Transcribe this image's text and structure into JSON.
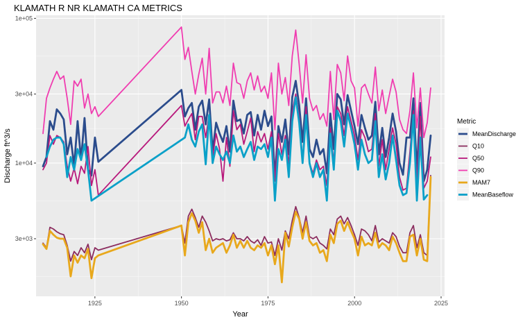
{
  "chart_data": {
    "type": "line",
    "title": "KLAMATH R NR KLAMATH CA  METRICS",
    "xlabel": "Year",
    "ylabel": "Discharge ft^3/s",
    "xlim": [
      1908,
      2026
    ],
    "ylim": [
      1200,
      105000
    ],
    "y_scale": "log",
    "x_ticks": [
      1925,
      1950,
      1975,
      2000,
      2025
    ],
    "x_tick_labels": [
      "1925",
      "1950",
      "1975",
      "2000",
      "2025"
    ],
    "y_ticks": [
      3000,
      10000,
      30000,
      100000
    ],
    "y_tick_labels": [
      "3e+03",
      "1e+04",
      "3e+04",
      "1e+05"
    ],
    "grid": true,
    "legend": {
      "title": "Metric",
      "position": "right"
    },
    "series": [
      {
        "name": "MeanDischarge",
        "color": "#2b4c8c",
        "width": 2.8,
        "x": [
          1910,
          1911,
          1912,
          1913,
          1914,
          1915,
          1916,
          1917,
          1918,
          1919,
          1920,
          1921,
          1922,
          1923,
          1924,
          1925,
          1926,
          1950,
          1951,
          1952,
          1953,
          1954,
          1955,
          1956,
          1957,
          1958,
          1959,
          1960,
          1961,
          1962,
          1963,
          1964,
          1965,
          1966,
          1967,
          1968,
          1969,
          1970,
          1971,
          1972,
          1973,
          1974,
          1975,
          1976,
          1977,
          1978,
          1979,
          1980,
          1981,
          1982,
          1983,
          1984,
          1985,
          1986,
          1987,
          1988,
          1989,
          1990,
          1991,
          1992,
          1993,
          1994,
          1995,
          1996,
          1997,
          1998,
          1999,
          2000,
          2001,
          2002,
          2003,
          2004,
          2005,
          2006,
          2007,
          2008,
          2009,
          2010,
          2011,
          2012,
          2013,
          2014,
          2015,
          2016,
          2017,
          2018,
          2019,
          2020,
          2021,
          2022
        ],
        "y": [
          9500,
          11000,
          19500,
          17000,
          23500,
          22000,
          20000,
          11500,
          15000,
          9500,
          19500,
          10500,
          20500,
          9000,
          8200,
          15000,
          10200,
          32000,
          21000,
          24000,
          26000,
          17000,
          24500,
          27000,
          18500,
          27500,
          12000,
          19000,
          16000,
          14000,
          18000,
          12000,
          27000,
          19500,
          20000,
          16000,
          21500,
          22500,
          15500,
          21500,
          17000,
          23000,
          18000,
          21000,
          8000,
          18000,
          14000,
          20000,
          11500,
          28500,
          37000,
          25000,
          14000,
          28000,
          12500,
          11000,
          14500,
          11500,
          12500,
          8500,
          22000,
          12500,
          30000,
          27500,
          18500,
          29500,
          23000,
          18000,
          13500,
          21500,
          17500,
          14500,
          15500,
          26500,
          11500,
          17500,
          11000,
          15000,
          22000,
          16500,
          10000,
          8300,
          15000,
          15000,
          28000,
          8700,
          26000,
          7500,
          9000,
          15500
        ]
      },
      {
        "name": "Q10",
        "color": "#8b2c5e",
        "width": 1.8,
        "x": [
          1910,
          1911,
          1912,
          1913,
          1914,
          1915,
          1916,
          1917,
          1918,
          1919,
          1920,
          1921,
          1922,
          1923,
          1924,
          1925,
          1926,
          1950,
          1951,
          1952,
          1953,
          1954,
          1955,
          1956,
          1957,
          1958,
          1959,
          1960,
          1961,
          1962,
          1963,
          1964,
          1965,
          1966,
          1967,
          1968,
          1969,
          1970,
          1971,
          1972,
          1973,
          1974,
          1975,
          1976,
          1977,
          1978,
          1979,
          1980,
          1981,
          1982,
          1983,
          1984,
          1985,
          1986,
          1987,
          1988,
          1989,
          1990,
          1991,
          1992,
          1993,
          1994,
          1995,
          1996,
          1997,
          1998,
          1999,
          2000,
          2001,
          2002,
          2003,
          2004,
          2005,
          2006,
          2007,
          2008,
          2009,
          2010,
          2011,
          2012,
          2013,
          2014,
          2015,
          2016,
          2017,
          2018,
          2019,
          2020,
          2021,
          2022
        ],
        "y": [
          2800,
          2600,
          3600,
          3500,
          3350,
          3250,
          3200,
          2700,
          2100,
          2450,
          2300,
          2600,
          2400,
          2750,
          2150,
          2600,
          2500,
          3700,
          2800,
          4300,
          4800,
          4200,
          3600,
          4300,
          3900,
          3400,
          2900,
          3000,
          2950,
          3000,
          2900,
          2950,
          3300,
          3000,
          3000,
          2900,
          3100,
          2900,
          2800,
          2950,
          2700,
          3100,
          2800,
          2850,
          2300,
          3000,
          2500,
          3400,
          3000,
          4000,
          5000,
          4200,
          3300,
          4300,
          3100,
          3000,
          3100,
          2800,
          2700,
          2550,
          3500,
          3200,
          4100,
          4300,
          3800,
          4200,
          3700,
          3200,
          2700,
          3500,
          3400,
          3200,
          2900,
          3700,
          2850,
          3000,
          2900,
          2800,
          3300,
          3100,
          2650,
          2400,
          2400,
          3300,
          3700,
          2600,
          3200,
          2400,
          2300,
          8200
        ]
      },
      {
        "name": "Q50",
        "color": "#b8197c",
        "width": 1.8,
        "x": [
          1910,
          1911,
          1912,
          1913,
          1914,
          1915,
          1916,
          1917,
          1918,
          1919,
          1920,
          1921,
          1922,
          1923,
          1924,
          1925,
          1926,
          1950,
          1951,
          1952,
          1953,
          1954,
          1955,
          1956,
          1957,
          1958,
          1959,
          1960,
          1961,
          1962,
          1963,
          1964,
          1965,
          1966,
          1967,
          1968,
          1969,
          1970,
          1971,
          1972,
          1973,
          1974,
          1975,
          1976,
          1977,
          1978,
          1979,
          1980,
          1981,
          1982,
          1983,
          1984,
          1985,
          1986,
          1987,
          1988,
          1989,
          1990,
          1991,
          1992,
          1993,
          1994,
          1995,
          1996,
          1997,
          1998,
          1999,
          2000,
          2001,
          2002,
          2003,
          2004,
          2005,
          2006,
          2007,
          2008,
          2009,
          2010,
          2011,
          2012,
          2013,
          2014,
          2015,
          2016,
          2017,
          2018,
          2019,
          2020,
          2021,
          2022
        ],
        "y": [
          9000,
          10000,
          15500,
          13500,
          15500,
          15000,
          14000,
          9500,
          7500,
          9200,
          7200,
          9500,
          8500,
          13000,
          7000,
          9000,
          6000,
          25000,
          18000,
          20000,
          22000,
          14500,
          21000,
          21000,
          15000,
          21500,
          11000,
          16000,
          12500,
          7500,
          15000,
          9500,
          23000,
          17000,
          18500,
          13500,
          16500,
          20500,
          12000,
          16500,
          14000,
          16000,
          12500,
          16500,
          7500,
          16000,
          11500,
          15500,
          9800,
          22500,
          30000,
          21000,
          10500,
          24500,
          10000,
          8500,
          10500,
          9000,
          9500,
          7000,
          17500,
          10000,
          24500,
          22000,
          15500,
          24500,
          19500,
          15500,
          10500,
          17000,
          15000,
          12000,
          12500,
          22000,
          9500,
          14500,
          9000,
          12500,
          17500,
          13500,
          8000,
          6500,
          6700,
          12000,
          23000,
          7200,
          21000,
          6700,
          7500,
          11000
        ]
      },
      {
        "name": "Q90",
        "color": "#f03cb0",
        "width": 1.8,
        "x": [
          1910,
          1911,
          1912,
          1913,
          1914,
          1915,
          1916,
          1917,
          1918,
          1919,
          1920,
          1921,
          1922,
          1923,
          1924,
          1925,
          1926,
          1950,
          1951,
          1952,
          1953,
          1954,
          1955,
          1956,
          1957,
          1958,
          1959,
          1960,
          1961,
          1962,
          1963,
          1964,
          1965,
          1966,
          1967,
          1968,
          1969,
          1970,
          1971,
          1972,
          1973,
          1974,
          1975,
          1976,
          1977,
          1978,
          1979,
          1980,
          1981,
          1982,
          1983,
          1984,
          1985,
          1986,
          1987,
          1988,
          1989,
          1990,
          1991,
          1992,
          1993,
          1994,
          1995,
          1996,
          1997,
          1998,
          1999,
          2000,
          2001,
          2002,
          2003,
          2004,
          2005,
          2006,
          2007,
          2008,
          2009,
          2010,
          2011,
          2012,
          2013,
          2014,
          2015,
          2016,
          2017,
          2018,
          2019,
          2020,
          2021,
          2022
        ],
        "y": [
          16000,
          28000,
          33000,
          38000,
          43000,
          38000,
          40000,
          28000,
          18500,
          37000,
          34000,
          38000,
          24000,
          30000,
          22000,
          24500,
          21000,
          87000,
          52000,
          63000,
          43000,
          30000,
          41000,
          53000,
          30000,
          62000,
          26000,
          31000,
          31000,
          26000,
          34000,
          25000,
          49000,
          36000,
          35000,
          28000,
          37000,
          42000,
          32000,
          40000,
          31000,
          34000,
          28000,
          42000,
          17000,
          49000,
          30000,
          39000,
          25000,
          55000,
          83000,
          48000,
          26000,
          56000,
          28000,
          23000,
          25000,
          20000,
          22000,
          18000,
          43000,
          20000,
          48000,
          42000,
          27000,
          55000,
          37000,
          33000,
          18000,
          33000,
          35000,
          30000,
          26000,
          46000,
          23000,
          32000,
          22000,
          29000,
          38000,
          31000,
          20000,
          17000,
          16000,
          23000,
          42000,
          17500,
          33000,
          15000,
          19000,
          33000
        ]
      },
      {
        "name": "MAM7",
        "color": "#e8a81c",
        "width": 2.8,
        "x": [
          1910,
          1911,
          1912,
          1913,
          1914,
          1915,
          1916,
          1917,
          1918,
          1919,
          1920,
          1921,
          1922,
          1923,
          1924,
          1925,
          1926,
          1950,
          1951,
          1952,
          1953,
          1954,
          1955,
          1956,
          1957,
          1958,
          1959,
          1960,
          1961,
          1962,
          1963,
          1964,
          1965,
          1966,
          1967,
          1968,
          1969,
          1970,
          1971,
          1972,
          1973,
          1974,
          1975,
          1976,
          1977,
          1978,
          1979,
          1980,
          1981,
          1982,
          1983,
          1984,
          1985,
          1986,
          1987,
          1988,
          1989,
          1990,
          1991,
          1992,
          1993,
          1994,
          1995,
          1996,
          1997,
          1998,
          1999,
          2000,
          2001,
          2002,
          2003,
          2004,
          2005,
          2006,
          2007,
          2008,
          2009,
          2010,
          2011,
          2012,
          2013,
          2014,
          2015,
          2016,
          2017,
          2018,
          2019,
          2020,
          2021,
          2022
        ],
        "y": [
          2750,
          2550,
          3400,
          3200,
          3050,
          3000,
          3000,
          2600,
          1650,
          2300,
          2050,
          2300,
          2200,
          2550,
          1600,
          2200,
          2300,
          3700,
          2300,
          3900,
          4500,
          4000,
          3300,
          3900,
          2500,
          3000,
          2400,
          2600,
          2700,
          2800,
          2400,
          2700,
          3200,
          2600,
          2900,
          2600,
          2900,
          2600,
          2500,
          2700,
          2600,
          2800,
          2300,
          2700,
          2000,
          2700,
          1500,
          3300,
          2650,
          3600,
          4600,
          4100,
          3000,
          3900,
          2900,
          2700,
          2800,
          2400,
          2500,
          2100,
          3200,
          2800,
          3800,
          4000,
          3400,
          3900,
          3400,
          3000,
          2300,
          3100,
          2700,
          2800,
          2700,
          3300,
          2600,
          2800,
          2700,
          2500,
          3100,
          2800,
          2400,
          2100,
          2100,
          3100,
          3200,
          2300,
          3000,
          2150,
          2100,
          8000
        ]
      },
      {
        "name": "MeanBaseflow",
        "color": "#0aa0c8",
        "width": 2.8,
        "x": [
          1911,
          1912,
          1913,
          1914,
          1915,
          1916,
          1917,
          1918,
          1919,
          1920,
          1921,
          1922,
          1923,
          1924,
          1951,
          1952,
          1953,
          1954,
          1955,
          1956,
          1957,
          1958,
          1959,
          1960,
          1961,
          1962,
          1963,
          1964,
          1965,
          1966,
          1967,
          1968,
          1969,
          1970,
          1971,
          1972,
          1973,
          1974,
          1975,
          1976,
          1977,
          1978,
          1979,
          1980,
          1981,
          1982,
          1983,
          1984,
          1985,
          1986,
          1987,
          1988,
          1989,
          1990,
          1991,
          1992,
          1993,
          1994,
          1995,
          1996,
          1997,
          1998,
          1999,
          2000,
          2001,
          2002,
          2003,
          2004,
          2005,
          2006,
          2007,
          2008,
          2009,
          2010,
          2011,
          2012,
          2013,
          2014,
          2015,
          2016,
          2017,
          2018,
          2019,
          2020,
          2021
        ],
        "y": [
          11000,
          13000,
          14500,
          15000,
          15000,
          13500,
          8000,
          11000,
          9000,
          12500,
          10500,
          13500,
          9000,
          5500,
          15000,
          18500,
          14500,
          13000,
          16500,
          18500,
          9800,
          21500,
          10000,
          13000,
          11500,
          10500,
          12000,
          10000,
          15500,
          12000,
          13000,
          11000,
          12500,
          14000,
          10500,
          13000,
          12500,
          13500,
          11000,
          15000,
          5500,
          12500,
          10500,
          14500,
          8000,
          19500,
          28500,
          19000,
          10000,
          21500,
          10000,
          8000,
          10000,
          8000,
          9000,
          5500,
          16000,
          9000,
          23000,
          19500,
          13000,
          22000,
          17500,
          13500,
          9000,
          14500,
          11500,
          10000,
          10500,
          19500,
          8000,
          11500,
          7700,
          10000,
          15500,
          10500,
          7000,
          6000,
          6200,
          10000,
          21500,
          5500,
          15000,
          5600,
          6000
        ]
      }
    ]
  }
}
